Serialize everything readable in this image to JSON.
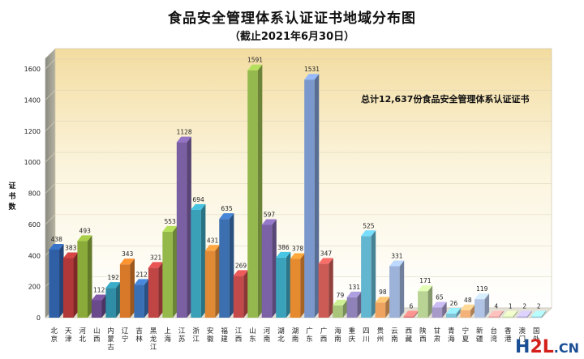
{
  "chart_data": {
    "type": "bar",
    "title": "食品安全管理体系认证证书地域分布图",
    "subtitle": "（截止2021年6月30日）",
    "ylabel": "证书数",
    "ylim": [
      0,
      1600
    ],
    "yticks": [
      0,
      200,
      400,
      600,
      800,
      1000,
      1200,
      1400,
      1600
    ],
    "annotation": "总计12,637份食品安全管理体系认证证书",
    "categories": [
      "北京",
      "天津",
      "河北",
      "山西",
      "内蒙古",
      "辽宁",
      "吉林",
      "黑龙江",
      "上海",
      "江苏",
      "浙江",
      "安徽",
      "福建",
      "江西",
      "山东",
      "河南",
      "湖北",
      "湖南",
      "广东",
      "广西",
      "海南",
      "重庆",
      "四川",
      "贵州",
      "云南",
      "西藏",
      "陕西",
      "甘肃",
      "青海",
      "宁夏",
      "新疆",
      "台湾",
      "香港",
      "澳门",
      "国外"
    ],
    "values": [
      438,
      383,
      493,
      112,
      192,
      343,
      212,
      321,
      553,
      1128,
      694,
      431,
      635,
      269,
      1591,
      597,
      386,
      378,
      1531,
      347,
      79,
      131,
      525,
      98,
      331,
      6,
      171,
      65,
      26,
      48,
      119,
      4,
      1,
      2,
      2
    ],
    "colors": [
      "#2f5fa5",
      "#b03838",
      "#8aaa3a",
      "#6a4a8a",
      "#2f8da5",
      "#d8792a",
      "#3b70b5",
      "#c04545",
      "#95b84a",
      "#7a5fa2",
      "#3aa0b8",
      "#e08a35",
      "#3b6fb0",
      "#c24a4a",
      "#94b84d",
      "#7b62a6",
      "#3aa3bb",
      "#e68a30",
      "#7a98cc",
      "#cc5a55",
      "#a8c57a",
      "#8f82b8",
      "#62b6cf",
      "#eea460",
      "#9cb2d8",
      "#d67a76",
      "#b9d394",
      "#a79ac8",
      "#80c6d8",
      "#f2b27a",
      "#b0c3e4",
      "#e09e9c",
      "#c6dca8",
      "#b6acd4",
      "#98d0e0"
    ],
    "grid": true
  },
  "watermark": {
    "part1": "H",
    "part2": "2L",
    "part3": ".CN"
  }
}
